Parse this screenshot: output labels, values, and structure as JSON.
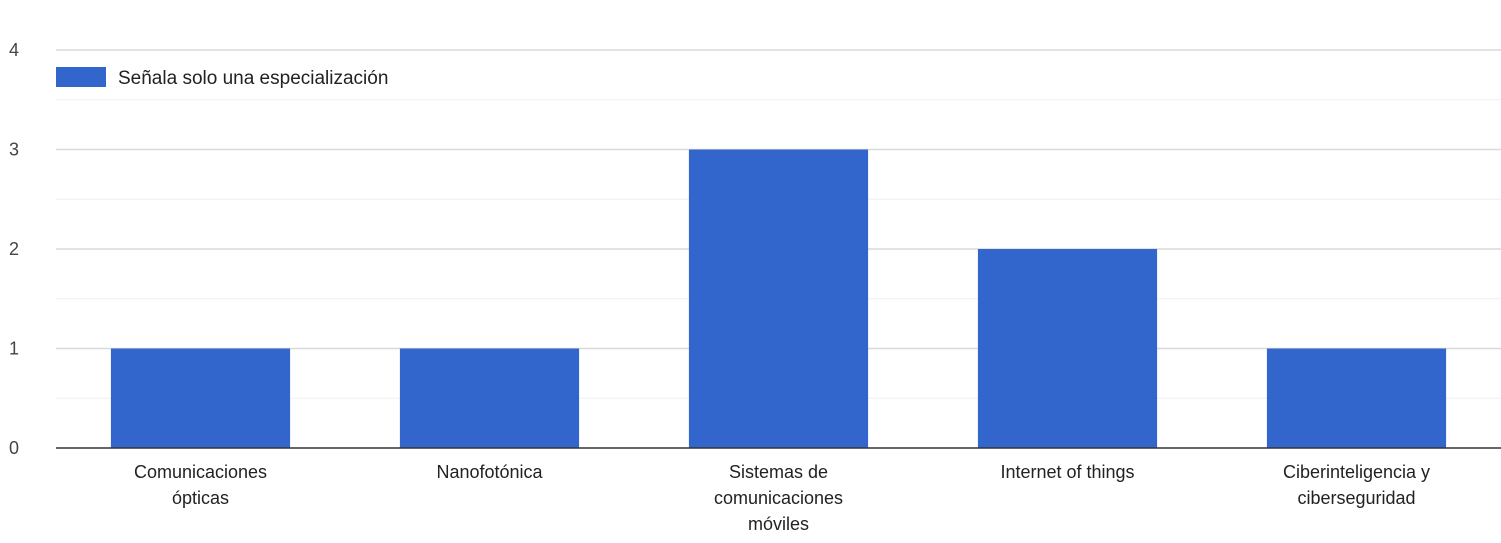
{
  "chart_data": {
    "type": "bar",
    "categories": [
      [
        "Comunicaciones",
        "ópticas"
      ],
      [
        "Nanofotónica"
      ],
      [
        "Sistemas de",
        "comunicaciones",
        "móviles"
      ],
      [
        "Internet of things"
      ],
      [
        "Ciberinteligencia y",
        "ciberseguridad"
      ]
    ],
    "series": [
      {
        "name": "Señala solo una especialización",
        "values": [
          1,
          1,
          3,
          2,
          1
        ],
        "color": "#3366cc"
      }
    ],
    "y_ticks": [
      "0",
      "1",
      "2",
      "3",
      "4"
    ],
    "ylim": [
      0,
      4
    ],
    "grid": true,
    "legend_position": "top-left"
  }
}
